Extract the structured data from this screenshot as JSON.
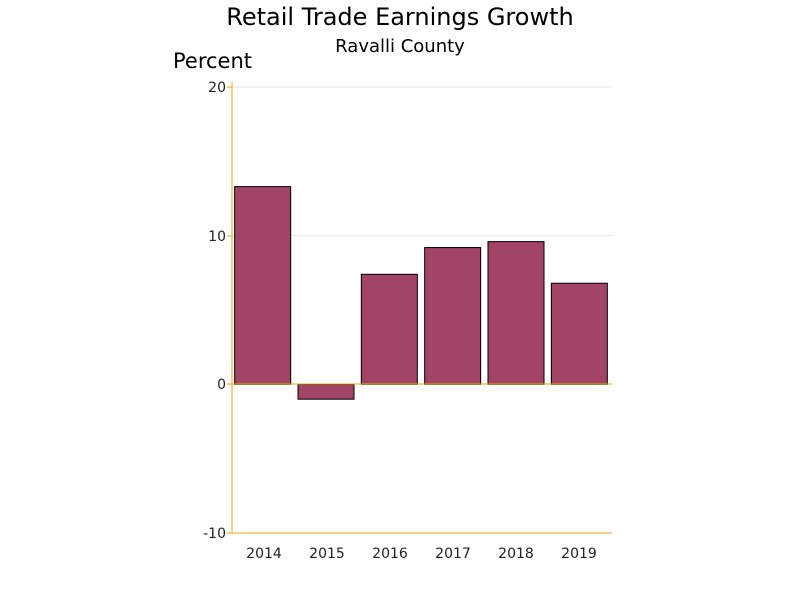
{
  "chart_data": {
    "type": "bar",
    "title": "Retail Trade Earnings Growth",
    "subtitle": "Ravalli County",
    "ylabel": "Percent",
    "xlabel": "",
    "categories": [
      "2014",
      "2015",
      "2016",
      "2017",
      "2018",
      "2019"
    ],
    "values": [
      13.3,
      -1.0,
      7.4,
      9.2,
      9.6,
      6.8
    ],
    "ylim": [
      -10,
      20
    ],
    "yticks": [
      "20",
      "10",
      "0",
      "-10"
    ],
    "grid": true,
    "legend": "none"
  },
  "colors": {
    "bar": "#a24466",
    "axis": "#f0a30a",
    "grid": "#e6e6e6"
  }
}
